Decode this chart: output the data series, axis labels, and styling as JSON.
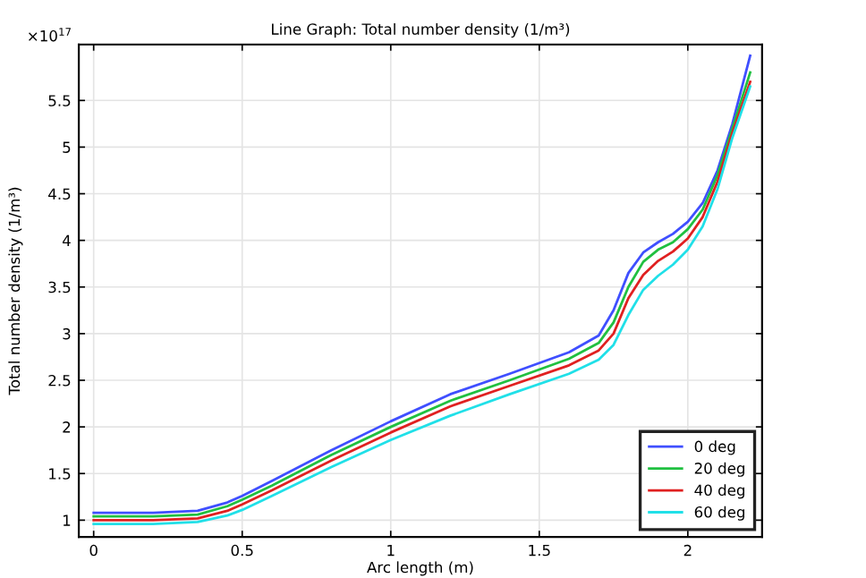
{
  "chart_data": {
    "type": "line",
    "title": "Line Graph: Total number density (1/m³)",
    "xlabel": "Arc length (m)",
    "ylabel": "Total number density (1/m³)",
    "annotations": [
      "×10$^{17}$"
    ],
    "x": [
      0,
      0.2,
      0.35,
      0.45,
      0.5,
      0.6,
      0.8,
      1.0,
      1.2,
      1.4,
      1.6,
      1.7,
      1.75,
      1.8,
      1.85,
      1.9,
      1.95,
      2.0,
      2.05,
      2.1,
      2.15,
      2.21
    ],
    "series": [
      {
        "name": "0 deg",
        "color": "#3f4fff",
        "values": [
          1.08,
          1.08,
          1.1,
          1.19,
          1.26,
          1.42,
          1.75,
          2.06,
          2.35,
          2.57,
          2.8,
          2.98,
          3.25,
          3.65,
          3.87,
          3.98,
          4.07,
          4.2,
          4.4,
          4.75,
          5.25,
          5.98
        ]
      },
      {
        "name": "20 deg",
        "color": "#20c040",
        "values": [
          1.04,
          1.04,
          1.06,
          1.15,
          1.22,
          1.37,
          1.7,
          2.0,
          2.28,
          2.5,
          2.73,
          2.9,
          3.12,
          3.5,
          3.77,
          3.9,
          3.98,
          4.12,
          4.33,
          4.7,
          5.2,
          5.8
        ]
      },
      {
        "name": "40 deg",
        "color": "#e02020",
        "values": [
          1.0,
          1.0,
          1.02,
          1.1,
          1.17,
          1.32,
          1.64,
          1.94,
          2.22,
          2.44,
          2.66,
          2.82,
          3.0,
          3.38,
          3.63,
          3.78,
          3.88,
          4.02,
          4.25,
          4.63,
          5.15,
          5.7
        ]
      },
      {
        "name": "60 deg",
        "color": "#20e0e8",
        "values": [
          0.96,
          0.96,
          0.98,
          1.05,
          1.11,
          1.26,
          1.57,
          1.86,
          2.12,
          2.35,
          2.57,
          2.72,
          2.88,
          3.2,
          3.47,
          3.62,
          3.74,
          3.9,
          4.15,
          4.55,
          5.1,
          5.65
        ]
      }
    ],
    "xlim": [
      -0.05,
      2.25
    ],
    "ylim": [
      0.82,
      6.1
    ],
    "xticks": [
      0,
      0.5,
      1,
      1.5,
      2
    ],
    "yticks": [
      1,
      1.5,
      2,
      2.5,
      3,
      3.5,
      4,
      4.5,
      5,
      5.5
    ],
    "grid": true,
    "legend": "bottom right",
    "marker": "none",
    "line_style": "solid"
  }
}
